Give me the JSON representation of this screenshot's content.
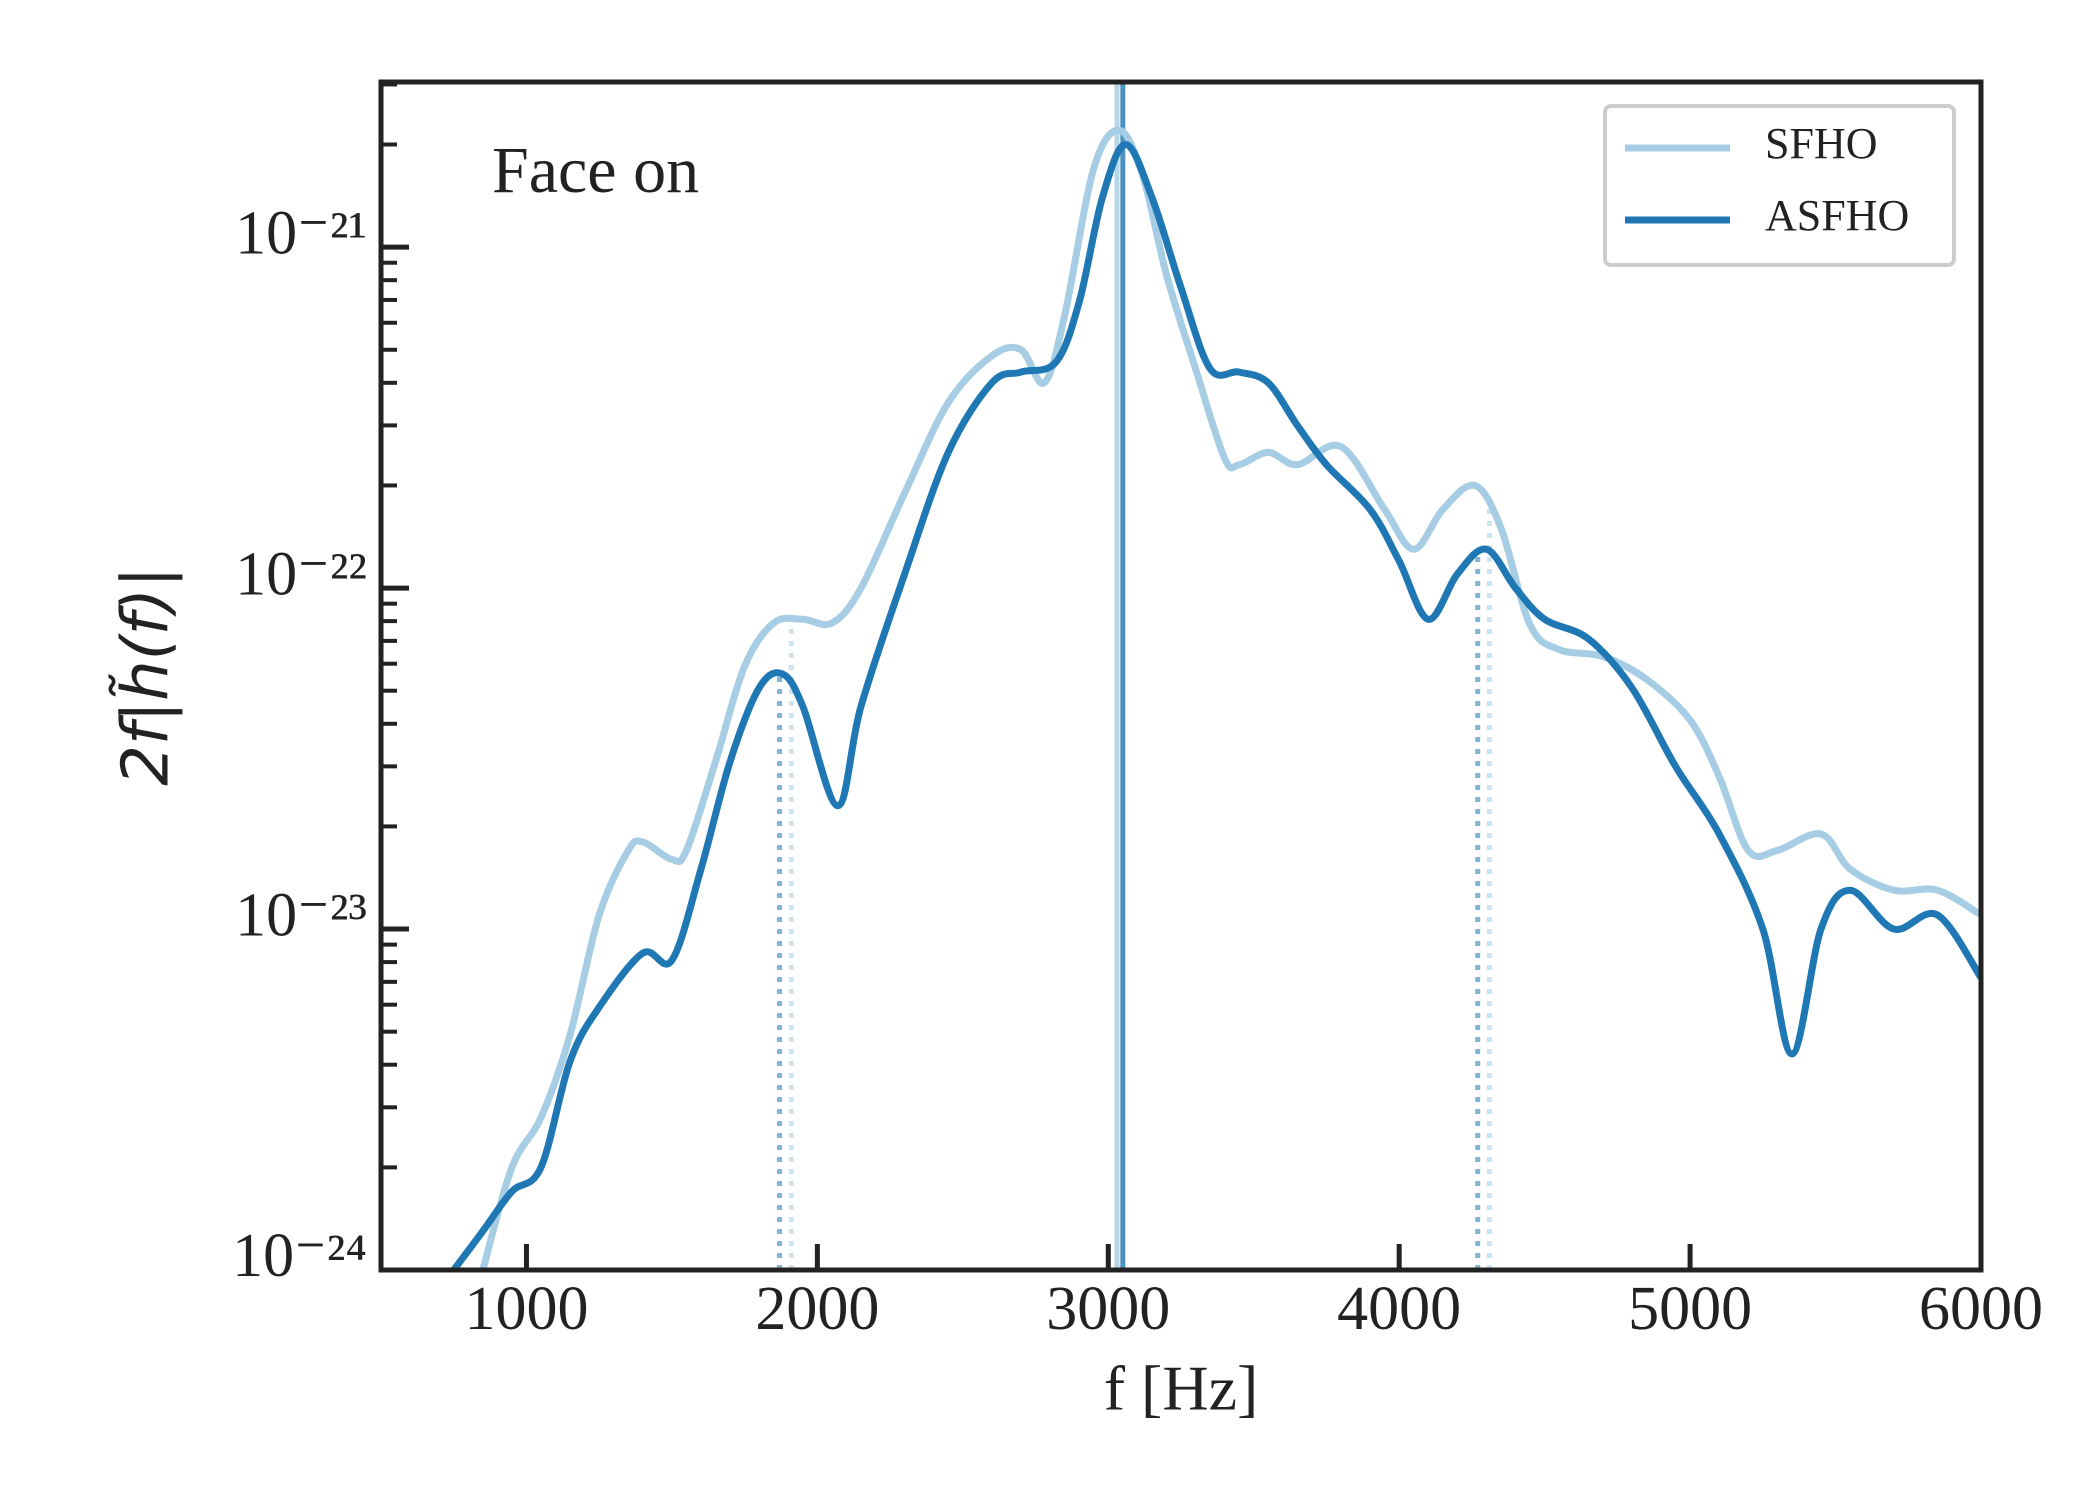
{
  "chart_data": {
    "type": "line",
    "annotation": "Face on",
    "x_label": "f [Hz]",
    "y_label": "2f|h̃(f)|",
    "log_y": true,
    "legend": "upper right",
    "xlim": [
      500,
      6000
    ],
    "xticks": [
      1000,
      2000,
      3000,
      4000,
      5000,
      6000
    ],
    "ylim": [
      1e-24,
      3.05e-21
    ],
    "yticks": [
      {
        "value": 1e-24,
        "label": "10⁻²⁴"
      },
      {
        "value": 1e-23,
        "label": "10⁻²³"
      },
      {
        "value": 1e-22,
        "label": "10⁻²²"
      },
      {
        "value": 1e-21,
        "label": "10⁻²¹"
      }
    ],
    "yminorticks": [
      2e-24,
      3e-24,
      4e-24,
      5e-24,
      6e-24,
      7e-24,
      8e-24,
      9e-24,
      2e-23,
      3e-23,
      4e-23,
      5e-23,
      6e-23,
      7e-23,
      8e-23,
      9e-23,
      2e-22,
      3e-22,
      4e-22,
      5e-22,
      6e-22,
      7e-22,
      8e-22,
      9e-22,
      2e-21,
      3e-21
    ],
    "series": [
      {
        "name": "SFHO",
        "color": "#a6cde3",
        "peak_frequency": 3030,
        "band_edges": [
          1910,
          4310
        ],
        "x": [
          850,
          950,
          1050,
          1150,
          1250,
          1350,
          1400,
          1500,
          1550,
          1650,
          1750,
          1850,
          1950,
          2050,
          2150,
          2300,
          2450,
          2600,
          2700,
          2780,
          2850,
          2950,
          3040,
          3120,
          3200,
          3300,
          3400,
          3450,
          3550,
          3650,
          3800,
          3950,
          4050,
          4150,
          4260,
          4350,
          4450,
          4550,
          4700,
          4850,
          5000,
          5100,
          5200,
          5300,
          5450,
          5550,
          5700,
          5850,
          6000
        ],
        "values": [
          1e-24,
          2e-24,
          2.8e-24,
          4.9e-24,
          1.1e-23,
          1.7e-23,
          1.8e-23,
          1.6e-23,
          1.7e-23,
          3.1e-23,
          5.9e-23,
          7.9e-23,
          8.1e-23,
          7.9e-23,
          1e-22,
          1.9e-22,
          3.5e-22,
          4.8e-22,
          5e-22,
          4e-22,
          6.3e-22,
          1.7e-21,
          2.2e-21,
          1.6e-21,
          8.3e-22,
          4.4e-22,
          2.4e-22,
          2.3e-22,
          2.5e-22,
          2.3e-22,
          2.6e-22,
          1.7e-22,
          1.3e-22,
          1.7e-22,
          2e-22,
          1.5e-22,
          7.8e-23,
          6.6e-23,
          6.3e-23,
          5.4e-23,
          4.1e-23,
          2.8e-23,
          1.7e-23,
          1.7e-23,
          1.9e-23,
          1.5e-23,
          1.3e-23,
          1.3e-23,
          1.1e-23
        ]
      },
      {
        "name": "ASFHO",
        "color": "#1f78b4",
        "peak_frequency": 3050,
        "band_edges": [
          1870,
          4270
        ],
        "x": [
          750,
          850,
          950,
          1050,
          1150,
          1250,
          1400,
          1500,
          1600,
          1700,
          1800,
          1880,
          1950,
          2070,
          2150,
          2300,
          2450,
          2600,
          2700,
          2820,
          2900,
          2980,
          3060,
          3150,
          3250,
          3350,
          3450,
          3550,
          3650,
          3750,
          3900,
          4000,
          4100,
          4200,
          4300,
          4400,
          4500,
          4650,
          4800,
          4950,
          5100,
          5250,
          5350,
          5450,
          5550,
          5700,
          5850,
          6000
        ],
        "values": [
          1e-24,
          1.3e-24,
          1.7e-24,
          2e-24,
          4.1e-24,
          5.9e-24,
          8.5e-24,
          8.1e-24,
          1.5e-23,
          3.1e-23,
          5.1e-23,
          5.6e-23,
          4.5e-23,
          2.3e-23,
          4.5e-23,
          1.1e-22,
          2.5e-22,
          4e-22,
          4.3e-22,
          4.6e-22,
          6.9e-22,
          1.4e-21,
          2e-21,
          1.4e-21,
          7.6e-22,
          4.4e-22,
          4.3e-22,
          4e-22,
          3e-22,
          2.3e-22,
          1.7e-22,
          1.2e-22,
          8.1e-23,
          1.1e-22,
          1.3e-22,
          1e-22,
          8.1e-23,
          7.1e-23,
          5.1e-23,
          3e-23,
          1.9e-23,
          1e-23,
          4.3e-24,
          1e-23,
          1.3e-23,
          1e-23,
          1.1e-23,
          7.2e-24
        ]
      }
    ]
  }
}
